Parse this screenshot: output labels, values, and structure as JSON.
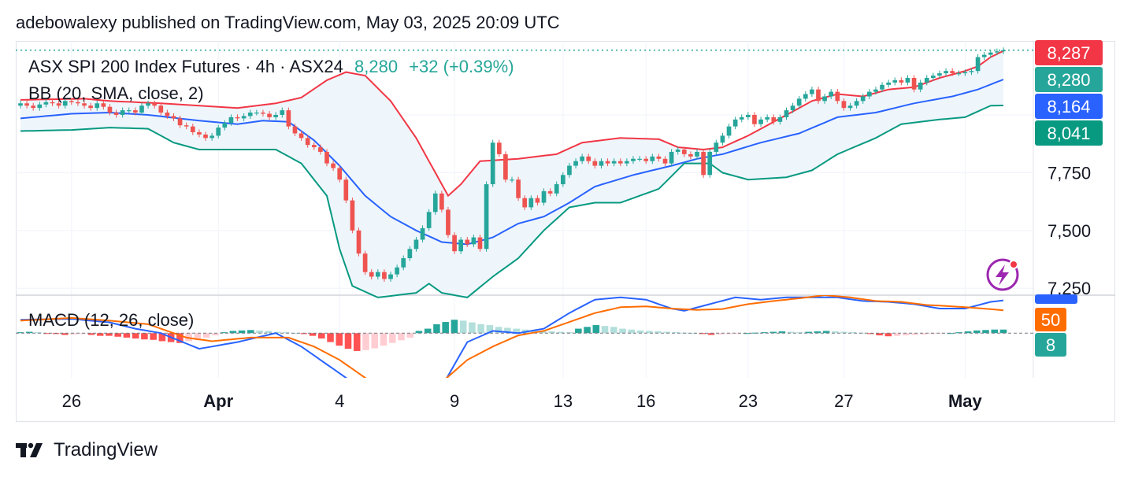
{
  "header": {
    "published_line": "adebowalexy published on TradingView.com, May 03, 2025 20:09 UTC"
  },
  "legend": {
    "symbol": "ASX SPI 200 Index Futures · 4h · ASX24",
    "last_price": "8,280",
    "change": "+32 (+0.39%)",
    "indicator_bb": "BB (20, SMA, close, 2)",
    "indicator_macd": "MACD (12, 26, close)"
  },
  "price_badges": [
    {
      "label": "8,287",
      "value": 8287,
      "color": "#f23645"
    },
    {
      "label": "8,280",
      "value": 8280,
      "color": "#26a69a"
    },
    {
      "label": "8,164",
      "value": 8164,
      "color": "#2962ff"
    },
    {
      "label": "8,041",
      "value": 8041,
      "color": "#089981"
    }
  ],
  "macd_badges": [
    {
      "label": "50",
      "value": 50,
      "color": "#ff6d00"
    },
    {
      "label": "8",
      "value": 8,
      "color": "#26a69a"
    }
  ],
  "footer": {
    "brand": "TradingView"
  },
  "colors": {
    "up": "#26a69a",
    "down": "#ef5350",
    "bb_upper": "#f23645",
    "bb_basis": "#2962ff",
    "bb_lower": "#089981",
    "bb_fill": "#eef6fc",
    "macd_line": "#2962ff",
    "signal_line": "#ff6d00",
    "grid": "#f0f3fa",
    "axis_text": "#131722"
  },
  "chart_data": [
    {
      "type": "candlestick",
      "title": "ASX SPI 200 Index Futures · 4h · ASX24",
      "ylim": [
        7220,
        8320
      ],
      "y_ticks": [
        7250,
        7500,
        7750,
        8041,
        8164,
        8280,
        8287
      ],
      "x_tick_labels": [
        {
          "label": "26",
          "bold": false,
          "index": 8
        },
        {
          "label": "Apr",
          "bold": true,
          "index": 31
        },
        {
          "label": "4",
          "bold": false,
          "index": 50
        },
        {
          "label": "9",
          "bold": false,
          "index": 68
        },
        {
          "label": "13",
          "bold": false,
          "index": 85
        },
        {
          "label": "16",
          "bold": false,
          "index": 98
        },
        {
          "label": "23",
          "bold": false,
          "index": 114
        },
        {
          "label": "27",
          "bold": false,
          "index": 129
        },
        {
          "label": "May",
          "bold": true,
          "index": 148
        }
      ],
      "close": [
        8050,
        8040,
        8030,
        8045,
        8055,
        8050,
        8040,
        8060,
        8055,
        8050,
        8040,
        8030,
        8050,
        8035,
        8010,
        8000,
        8020,
        8020,
        8010,
        8040,
        8050,
        8040,
        8010,
        7995,
        7985,
        7955,
        7950,
        7925,
        7915,
        7900,
        7910,
        7945,
        7965,
        7990,
        7985,
        7995,
        8010,
        8010,
        8005,
        7990,
        8000,
        8020,
        7950,
        7920,
        7900,
        7870,
        7860,
        7840,
        7790,
        7770,
        7720,
        7630,
        7500,
        7400,
        7320,
        7300,
        7320,
        7290,
        7310,
        7340,
        7380,
        7420,
        7460,
        7510,
        7580,
        7660,
        7590,
        7480,
        7410,
        7460,
        7440,
        7470,
        7420,
        7700,
        7880,
        7830,
        7720,
        7720,
        7640,
        7600,
        7640,
        7620,
        7670,
        7660,
        7700,
        7740,
        7780,
        7800,
        7820,
        7800,
        7780,
        7800,
        7790,
        7800,
        7790,
        7800,
        7810,
        7810,
        7800,
        7820,
        7810,
        7790,
        7840,
        7850,
        7830,
        7820,
        7840,
        7740,
        7840,
        7880,
        7910,
        7950,
        7980,
        7990,
        8000,
        7960,
        7980,
        7990,
        7970,
        7990,
        8020,
        8040,
        8070,
        8090,
        8110,
        8060,
        8080,
        8100,
        8060,
        8030,
        8040,
        8060,
        8080,
        8100,
        8110,
        8130,
        8140,
        8150,
        8140,
        8160,
        8110,
        8140,
        8160,
        8170,
        8180,
        8190,
        8180,
        8180,
        8185,
        8190,
        8250,
        8260,
        8270,
        8275,
        8280
      ],
      "bb_upper_points": [
        [
          0,
          8065
        ],
        [
          10,
          8070
        ],
        [
          14,
          8060
        ],
        [
          22,
          8050
        ],
        [
          28,
          8040
        ],
        [
          34,
          8030
        ],
        [
          40,
          8050
        ],
        [
          44,
          8075
        ],
        [
          48,
          8150
        ],
        [
          51,
          8185
        ],
        [
          54,
          8170
        ],
        [
          58,
          8060
        ],
        [
          62,
          7900
        ],
        [
          65,
          7750
        ],
        [
          67,
          7650
        ],
        [
          69,
          7700
        ],
        [
          72,
          7800
        ],
        [
          78,
          7810
        ],
        [
          84,
          7830
        ],
        [
          88,
          7880
        ],
        [
          94,
          7900
        ],
        [
          100,
          7895
        ],
        [
          103,
          7860
        ],
        [
          107,
          7850
        ],
        [
          110,
          7860
        ],
        [
          114,
          7910
        ],
        [
          118,
          7970
        ],
        [
          124,
          8060
        ],
        [
          128,
          8090
        ],
        [
          132,
          8080
        ],
        [
          136,
          8110
        ],
        [
          140,
          8120
        ],
        [
          144,
          8160
        ],
        [
          148,
          8190
        ],
        [
          150,
          8210
        ],
        [
          152,
          8250
        ],
        [
          155,
          8290
        ]
      ],
      "bb_basis_points": [
        [
          0,
          7985
        ],
        [
          8,
          8005
        ],
        [
          14,
          8010
        ],
        [
          20,
          8000
        ],
        [
          28,
          7975
        ],
        [
          34,
          7960
        ],
        [
          38,
          7975
        ],
        [
          42,
          7970
        ],
        [
          46,
          7890
        ],
        [
          50,
          7780
        ],
        [
          54,
          7650
        ],
        [
          58,
          7560
        ],
        [
          62,
          7500
        ],
        [
          66,
          7450
        ],
        [
          70,
          7440
        ],
        [
          74,
          7470
        ],
        [
          78,
          7530
        ],
        [
          82,
          7560
        ],
        [
          86,
          7620
        ],
        [
          90,
          7690
        ],
        [
          96,
          7740
        ],
        [
          102,
          7780
        ],
        [
          106,
          7810
        ],
        [
          110,
          7830
        ],
        [
          116,
          7880
        ],
        [
          122,
          7920
        ],
        [
          128,
          7990
        ],
        [
          134,
          8010
        ],
        [
          140,
          8050
        ],
        [
          146,
          8080
        ],
        [
          150,
          8110
        ],
        [
          155,
          8164
        ]
      ],
      "bb_lower_points": [
        [
          0,
          7930
        ],
        [
          8,
          7935
        ],
        [
          14,
          7945
        ],
        [
          20,
          7940
        ],
        [
          24,
          7880
        ],
        [
          28,
          7850
        ],
        [
          34,
          7850
        ],
        [
          40,
          7850
        ],
        [
          44,
          7790
        ],
        [
          48,
          7650
        ],
        [
          50,
          7420
        ],
        [
          52,
          7260
        ],
        [
          56,
          7210
        ],
        [
          62,
          7230
        ],
        [
          64,
          7270
        ],
        [
          66,
          7230
        ],
        [
          70,
          7210
        ],
        [
          74,
          7300
        ],
        [
          78,
          7380
        ],
        [
          82,
          7500
        ],
        [
          86,
          7600
        ],
        [
          90,
          7620
        ],
        [
          94,
          7620
        ],
        [
          100,
          7680
        ],
        [
          104,
          7790
        ],
        [
          108,
          7790
        ],
        [
          110,
          7750
        ],
        [
          114,
          7720
        ],
        [
          120,
          7730
        ],
        [
          124,
          7760
        ],
        [
          128,
          7830
        ],
        [
          134,
          7900
        ],
        [
          138,
          7960
        ],
        [
          144,
          7980
        ],
        [
          148,
          7990
        ],
        [
          152,
          8040
        ],
        [
          155,
          8041
        ]
      ]
    },
    {
      "type": "macd",
      "title": "MACD (12, 26, close)",
      "ylim": [
        -100,
        85
      ],
      "macd_points": [
        [
          0,
          30
        ],
        [
          8,
          32
        ],
        [
          14,
          24
        ],
        [
          18,
          10
        ],
        [
          22,
          0
        ],
        [
          28,
          -35
        ],
        [
          34,
          -20
        ],
        [
          40,
          0
        ],
        [
          44,
          -30
        ],
        [
          48,
          -70
        ],
        [
          52,
          -110
        ],
        [
          56,
          -150
        ],
        [
          60,
          -180
        ],
        [
          64,
          -200
        ],
        [
          66,
          -120
        ],
        [
          70,
          -20
        ],
        [
          74,
          5
        ],
        [
          78,
          0
        ],
        [
          82,
          10
        ],
        [
          86,
          45
        ],
        [
          90,
          75
        ],
        [
          94,
          80
        ],
        [
          98,
          75
        ],
        [
          102,
          55
        ],
        [
          104,
          50
        ],
        [
          108,
          65
        ],
        [
          112,
          80
        ],
        [
          116,
          75
        ],
        [
          120,
          80
        ],
        [
          124,
          80
        ],
        [
          128,
          80
        ],
        [
          132,
          72
        ],
        [
          136,
          70
        ],
        [
          140,
          65
        ],
        [
          144,
          55
        ],
        [
          148,
          55
        ],
        [
          152,
          70
        ],
        [
          155,
          75
        ]
      ],
      "signal_points": [
        [
          0,
          28
        ],
        [
          8,
          34
        ],
        [
          14,
          28
        ],
        [
          20,
          20
        ],
        [
          26,
          -10
        ],
        [
          30,
          -18
        ],
        [
          36,
          -10
        ],
        [
          42,
          -10
        ],
        [
          46,
          -30
        ],
        [
          50,
          -60
        ],
        [
          54,
          -100
        ],
        [
          58,
          -140
        ],
        [
          62,
          -170
        ],
        [
          66,
          -110
        ],
        [
          70,
          -60
        ],
        [
          74,
          -30
        ],
        [
          78,
          -5
        ],
        [
          82,
          5
        ],
        [
          86,
          25
        ],
        [
          90,
          45
        ],
        [
          94,
          58
        ],
        [
          98,
          60
        ],
        [
          102,
          55
        ],
        [
          106,
          52
        ],
        [
          110,
          54
        ],
        [
          114,
          65
        ],
        [
          118,
          72
        ],
        [
          122,
          78
        ],
        [
          126,
          85
        ],
        [
          130,
          80
        ],
        [
          134,
          72
        ],
        [
          138,
          70
        ],
        [
          142,
          63
        ],
        [
          146,
          60
        ],
        [
          150,
          56
        ],
        [
          155,
          50
        ]
      ],
      "histogram": [
        2,
        3,
        2,
        -1,
        -2,
        -4,
        -3,
        -2,
        -4,
        -6,
        -6,
        -8,
        -10,
        -12,
        -14,
        -15,
        -18,
        -20,
        -22,
        -18,
        -15,
        -10,
        -5,
        2,
        5,
        6,
        7,
        6,
        5,
        3,
        2,
        0,
        -2,
        -6,
        -12,
        -20,
        -28,
        -35,
        -40,
        -38,
        -34,
        -28,
        -22,
        -16,
        -10,
        5,
        10,
        20,
        25,
        30,
        28,
        24,
        20,
        18,
        14,
        12,
        10,
        8,
        6,
        5,
        4,
        3,
        2,
        10,
        14,
        18,
        16,
        14,
        10,
        8,
        6,
        5,
        4,
        3,
        2,
        1,
        0,
        -2,
        -4,
        -3,
        -2,
        -1,
        0,
        1,
        2,
        3,
        4,
        3,
        2,
        3,
        4,
        5,
        4,
        3,
        2,
        1,
        -2,
        -5,
        -7,
        -6,
        -5,
        -4,
        -3,
        -2,
        -1,
        0,
        2,
        4,
        6,
        7,
        8,
        8
      ]
    }
  ]
}
